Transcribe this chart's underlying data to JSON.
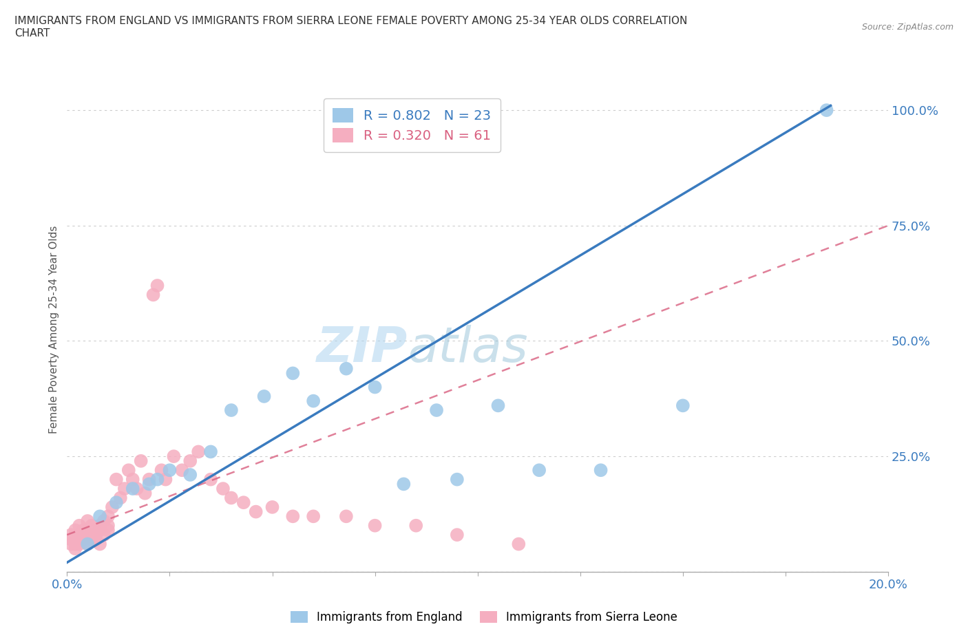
{
  "title": "IMMIGRANTS FROM ENGLAND VS IMMIGRANTS FROM SIERRA LEONE FEMALE POVERTY AMONG 25-34 YEAR OLDS CORRELATION\nCHART",
  "source": "Source: ZipAtlas.com",
  "ylabel": "Female Poverty Among 25-34 Year Olds",
  "xlim": [
    0.0,
    0.2
  ],
  "ylim": [
    0.0,
    1.05
  ],
  "xticks": [
    0.0,
    0.025,
    0.05,
    0.075,
    0.1,
    0.125,
    0.15,
    0.175,
    0.2
  ],
  "xticklabels": [
    "0.0%",
    "",
    "",
    "",
    "",
    "",
    "",
    "",
    "20.0%"
  ],
  "yticks": [
    0.0,
    0.25,
    0.5,
    0.75,
    1.0
  ],
  "yticklabels": [
    "",
    "25.0%",
    "50.0%",
    "75.0%",
    "100.0%"
  ],
  "watermark_zip": "ZIP",
  "watermark_atlas": "atlas",
  "england_color": "#9ec8e8",
  "sierra_leone_color": "#f5aec0",
  "england_line_color": "#3a7bbf",
  "sierra_leone_line_color": "#d96080",
  "england_R": 0.802,
  "england_N": 23,
  "sierra_leone_R": 0.32,
  "sierra_leone_N": 61,
  "england_scatter_x": [
    0.005,
    0.008,
    0.012,
    0.016,
    0.02,
    0.022,
    0.025,
    0.03,
    0.035,
    0.04,
    0.048,
    0.055,
    0.06,
    0.068,
    0.075,
    0.082,
    0.09,
    0.095,
    0.105,
    0.115,
    0.13,
    0.15,
    0.185
  ],
  "england_scatter_y": [
    0.06,
    0.12,
    0.15,
    0.18,
    0.19,
    0.2,
    0.22,
    0.21,
    0.26,
    0.35,
    0.38,
    0.43,
    0.37,
    0.44,
    0.4,
    0.19,
    0.35,
    0.2,
    0.36,
    0.22,
    0.22,
    0.36,
    1.0
  ],
  "sierra_leone_scatter_x": [
    0.001,
    0.001,
    0.001,
    0.002,
    0.002,
    0.002,
    0.003,
    0.003,
    0.003,
    0.003,
    0.004,
    0.004,
    0.004,
    0.005,
    0.005,
    0.005,
    0.006,
    0.006,
    0.006,
    0.007,
    0.007,
    0.007,
    0.008,
    0.008,
    0.008,
    0.009,
    0.009,
    0.01,
    0.01,
    0.01,
    0.011,
    0.012,
    0.013,
    0.014,
    0.015,
    0.016,
    0.017,
    0.018,
    0.019,
    0.02,
    0.021,
    0.022,
    0.023,
    0.024,
    0.026,
    0.028,
    0.03,
    0.032,
    0.035,
    0.038,
    0.04,
    0.043,
    0.046,
    0.05,
    0.055,
    0.06,
    0.068,
    0.075,
    0.085,
    0.095,
    0.11
  ],
  "sierra_leone_scatter_y": [
    0.06,
    0.07,
    0.08,
    0.05,
    0.06,
    0.09,
    0.07,
    0.08,
    0.06,
    0.1,
    0.08,
    0.07,
    0.09,
    0.08,
    0.11,
    0.06,
    0.07,
    0.1,
    0.08,
    0.09,
    0.07,
    0.08,
    0.1,
    0.09,
    0.06,
    0.11,
    0.08,
    0.1,
    0.12,
    0.09,
    0.14,
    0.2,
    0.16,
    0.18,
    0.22,
    0.2,
    0.18,
    0.24,
    0.17,
    0.2,
    0.6,
    0.62,
    0.22,
    0.2,
    0.25,
    0.22,
    0.24,
    0.26,
    0.2,
    0.18,
    0.16,
    0.15,
    0.13,
    0.14,
    0.12,
    0.12,
    0.12,
    0.1,
    0.1,
    0.08,
    0.06
  ],
  "england_line_x0": 0.0,
  "england_line_y0": 0.02,
  "england_line_x1": 0.186,
  "england_line_y1": 1.01,
  "sl_line_x0": 0.0,
  "sl_line_y0": 0.08,
  "sl_line_x1": 0.2,
  "sl_line_y1": 0.75
}
